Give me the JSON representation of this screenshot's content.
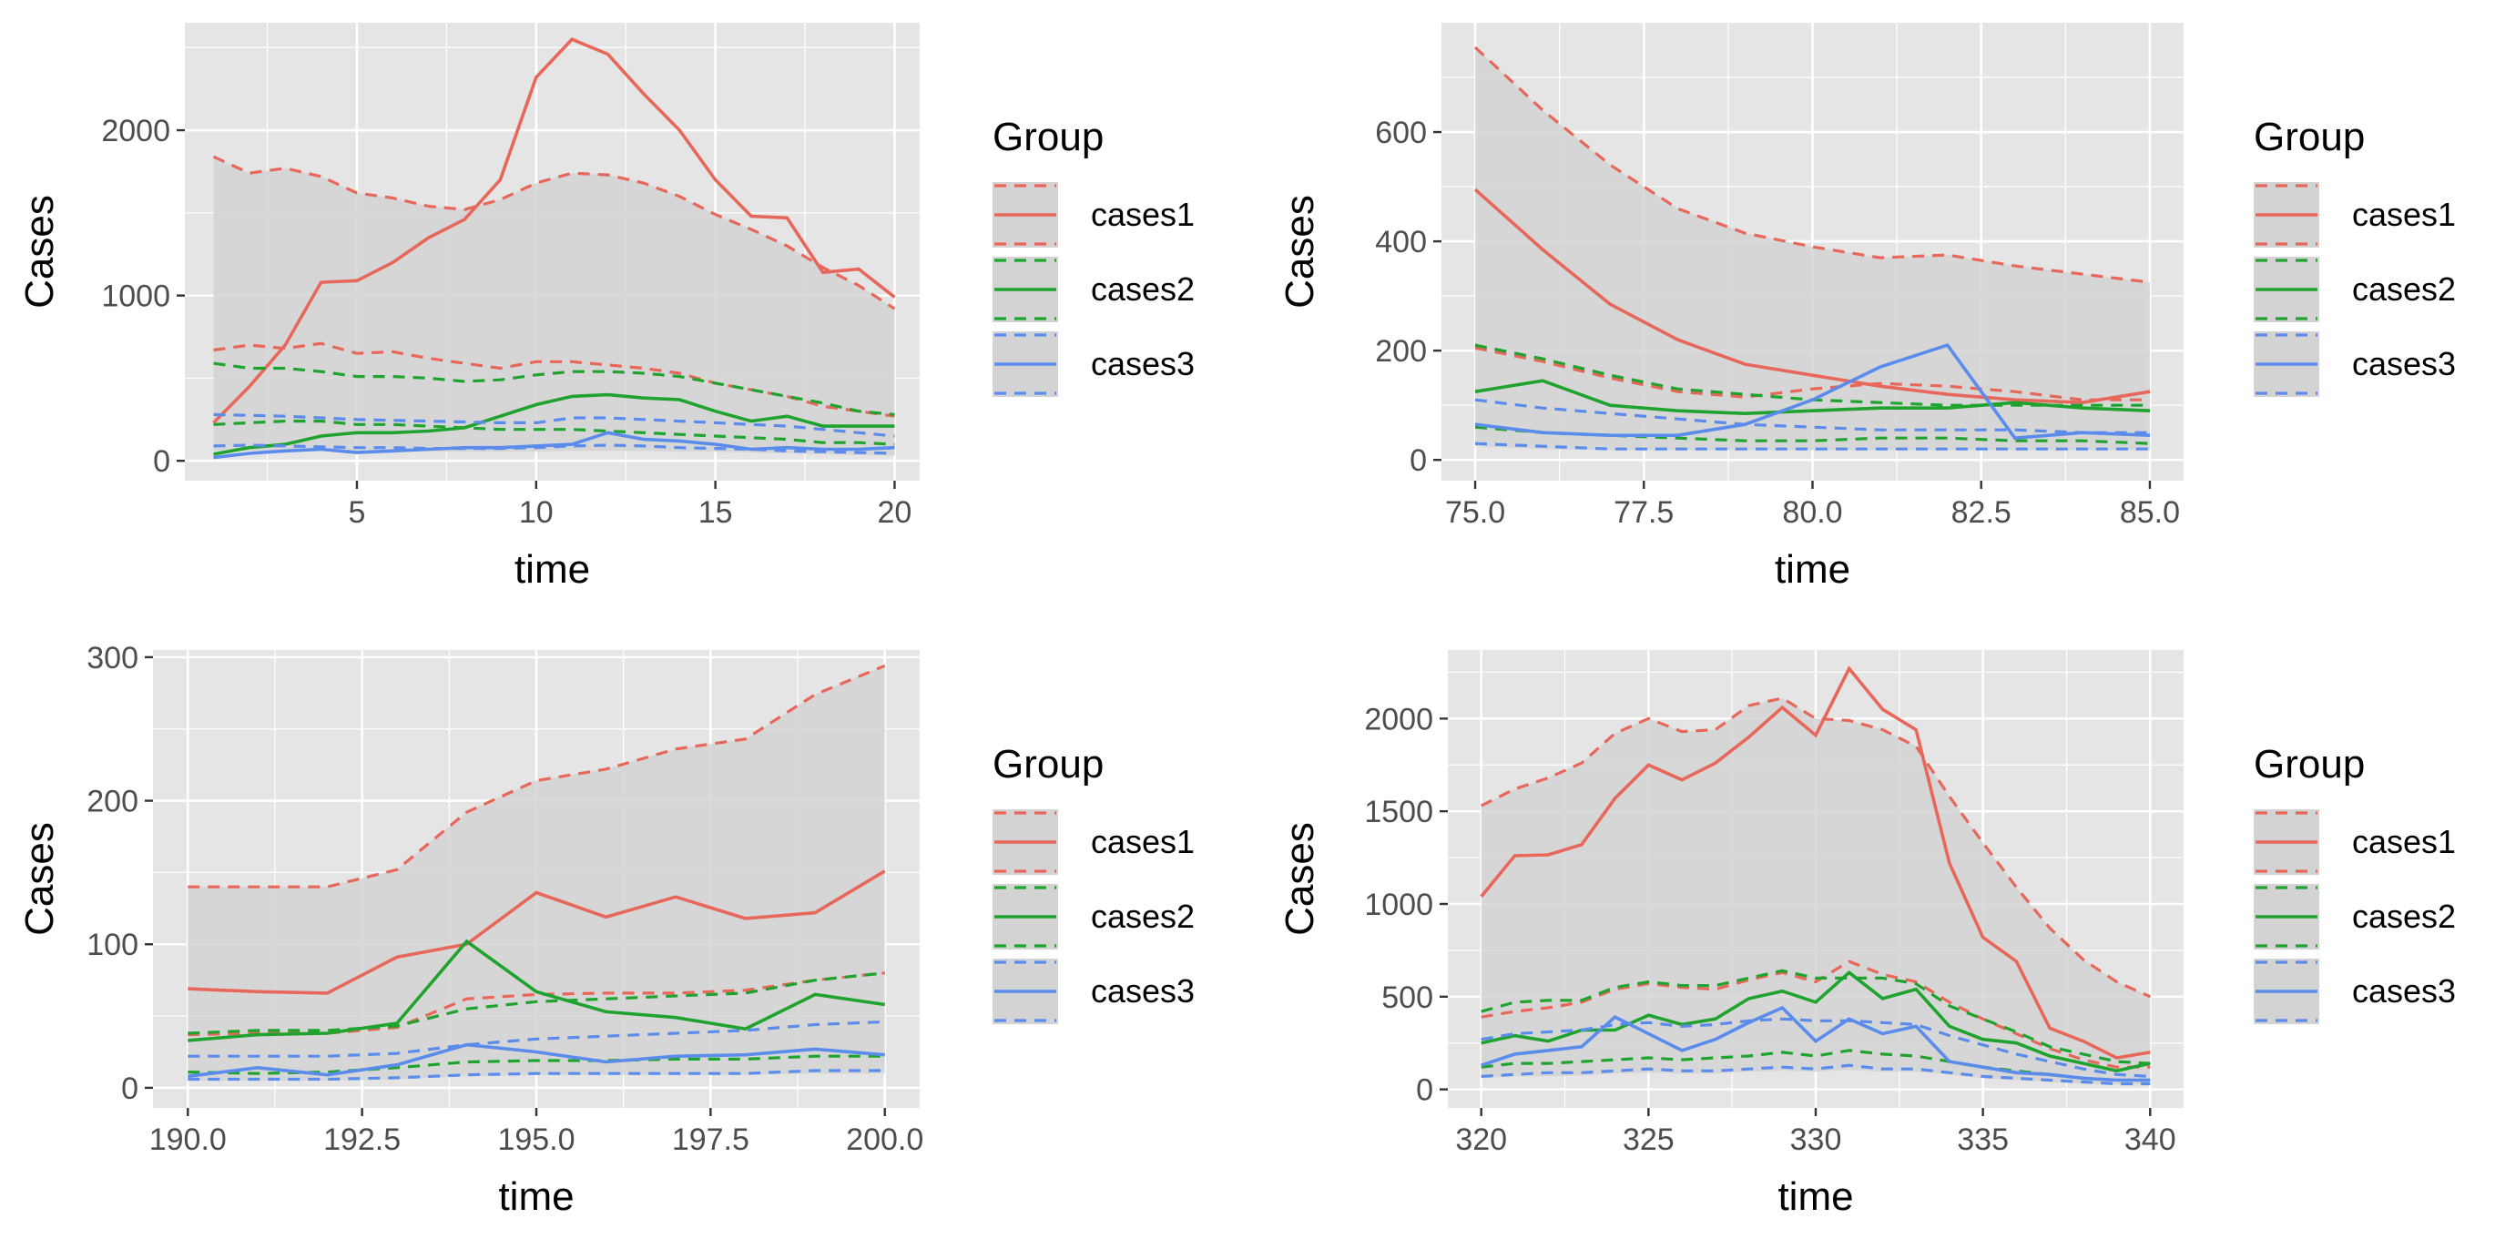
{
  "colors": {
    "cases1": "#E8675B",
    "cases2": "#1FA32E",
    "cases3": "#5B8CEB",
    "panel_background": "#E5E5E5",
    "grid": "#FFFFFF",
    "ribbon": "#D3D3D3"
  },
  "chart_data": [
    {
      "type": "line",
      "xlabel": "time",
      "ylabel": "Cases",
      "xlim": [
        0.2,
        20.7
      ],
      "ylim": [
        -120,
        2650
      ],
      "xticks": [
        5,
        10,
        15,
        20
      ],
      "xtick_labels": [
        "5",
        "10",
        "15",
        "20"
      ],
      "yticks": [
        0,
        1000,
        2000
      ],
      "ytick_labels": [
        "0",
        "1000",
        "2000"
      ],
      "grid": true,
      "legend": {
        "title": "Group",
        "position": "right",
        "items": [
          "cases1",
          "cases2",
          "cases3"
        ]
      },
      "x": [
        1,
        2,
        3,
        4,
        5,
        6,
        7,
        8,
        9,
        10,
        11,
        12,
        13,
        14,
        15,
        16,
        17,
        18,
        19,
        20
      ],
      "series": [
        {
          "name": "cases1",
          "values": [
            230,
            450,
            700,
            1080,
            1090,
            1200,
            1350,
            1460,
            1700,
            2320,
            2550,
            2460,
            2220,
            2000,
            1700,
            1480,
            1470,
            1140,
            1160,
            990
          ],
          "upper": [
            1840,
            1740,
            1770,
            1720,
            1620,
            1590,
            1540,
            1520,
            1580,
            1680,
            1740,
            1730,
            1680,
            1600,
            1490,
            1400,
            1300,
            1170,
            1060,
            920
          ],
          "lower": [
            670,
            700,
            680,
            710,
            650,
            660,
            620,
            590,
            560,
            600,
            600,
            580,
            560,
            530,
            470,
            430,
            390,
            330,
            300,
            270
          ]
        },
        {
          "name": "cases2",
          "values": [
            40,
            80,
            100,
            150,
            170,
            170,
            180,
            200,
            270,
            340,
            390,
            400,
            380,
            370,
            300,
            240,
            270,
            210,
            210,
            210
          ],
          "upper": [
            590,
            560,
            560,
            540,
            510,
            510,
            500,
            480,
            490,
            520,
            540,
            540,
            530,
            510,
            470,
            430,
            390,
            350,
            300,
            280
          ],
          "lower": [
            220,
            230,
            240,
            240,
            220,
            220,
            210,
            200,
            190,
            190,
            190,
            180,
            170,
            160,
            150,
            140,
            130,
            110,
            110,
            100
          ]
        },
        {
          "name": "cases3",
          "values": [
            20,
            45,
            60,
            70,
            50,
            60,
            70,
            80,
            80,
            90,
            100,
            170,
            130,
            120,
            100,
            70,
            80,
            70,
            70,
            80
          ],
          "upper": [
            280,
            275,
            270,
            260,
            250,
            245,
            240,
            235,
            230,
            230,
            260,
            260,
            250,
            240,
            230,
            220,
            210,
            190,
            170,
            150
          ],
          "lower": [
            90,
            95,
            90,
            85,
            80,
            80,
            75,
            75,
            75,
            80,
            90,
            95,
            90,
            80,
            75,
            70,
            60,
            55,
            50,
            45
          ]
        }
      ],
      "ribbon": {
        "upper": [
          1840,
          1740,
          1770,
          1720,
          1620,
          1590,
          1540,
          1520,
          1580,
          1680,
          1740,
          1730,
          1680,
          1600,
          1490,
          1400,
          1300,
          1170,
          1060,
          920
        ],
        "lower": [
          60,
          60,
          60,
          60,
          55,
          55,
          55,
          55,
          55,
          55,
          60,
          60,
          60,
          55,
          55,
          50,
          45,
          40,
          35,
          30
        ]
      }
    },
    {
      "type": "line",
      "xlabel": "time",
      "ylabel": "Cases",
      "xlim": [
        74.5,
        85.5
      ],
      "ylim": [
        -38,
        800
      ],
      "xticks": [
        75,
        77.5,
        80,
        82.5,
        85
      ],
      "xtick_labels": [
        "75.0",
        "77.5",
        "80.0",
        "82.5",
        "85.0"
      ],
      "yticks": [
        0,
        200,
        400,
        600
      ],
      "ytick_labels": [
        "0",
        "200",
        "400",
        "600"
      ],
      "grid": true,
      "legend": {
        "title": "Group",
        "position": "right",
        "items": [
          "cases1",
          "cases2",
          "cases3"
        ]
      },
      "x": [
        75,
        76,
        77,
        78,
        79,
        80,
        81,
        82,
        83,
        84,
        85
      ],
      "series": [
        {
          "name": "cases1",
          "values": [
            495,
            385,
            285,
            220,
            175,
            155,
            135,
            120,
            110,
            105,
            125
          ],
          "upper": [
            755,
            640,
            540,
            460,
            415,
            390,
            370,
            375,
            355,
            340,
            325
          ],
          "lower": [
            205,
            180,
            150,
            125,
            115,
            130,
            140,
            135,
            125,
            110,
            110
          ]
        },
        {
          "name": "cases2",
          "values": [
            125,
            145,
            100,
            90,
            85,
            90,
            95,
            95,
            105,
            95,
            90
          ],
          "upper": [
            210,
            185,
            155,
            130,
            120,
            110,
            105,
            100,
            100,
            100,
            100
          ],
          "lower": [
            60,
            50,
            45,
            40,
            35,
            35,
            40,
            40,
            35,
            35,
            30
          ]
        },
        {
          "name": "cases3",
          "values": [
            65,
            50,
            45,
            45,
            65,
            110,
            170,
            210,
            40,
            50,
            45
          ],
          "upper": [
            110,
            95,
            85,
            75,
            65,
            60,
            55,
            55,
            55,
            50,
            50
          ],
          "lower": [
            30,
            25,
            20,
            20,
            20,
            20,
            20,
            20,
            20,
            20,
            20
          ]
        }
      ],
      "ribbon": {
        "upper": [
          755,
          640,
          540,
          460,
          415,
          390,
          370,
          375,
          355,
          340,
          325
        ],
        "lower": [
          25,
          20,
          18,
          18,
          18,
          18,
          18,
          18,
          18,
          18,
          18
        ]
      }
    },
    {
      "type": "line",
      "xlabel": "time",
      "ylabel": "Cases",
      "xlim": [
        189.5,
        200.5
      ],
      "ylim": [
        -14,
        305
      ],
      "xticks": [
        190,
        192.5,
        195,
        197.5,
        200
      ],
      "xtick_labels": [
        "190.0",
        "192.5",
        "195.0",
        "197.5",
        "200.0"
      ],
      "yticks": [
        0,
        100,
        200,
        300
      ],
      "ytick_labels": [
        "0",
        "100",
        "200",
        "300"
      ],
      "grid": true,
      "legend": {
        "title": "Group",
        "position": "right",
        "items": [
          "cases1",
          "cases2",
          "cases3"
        ]
      },
      "x": [
        190,
        191,
        192,
        193,
        194,
        195,
        196,
        197,
        198,
        199,
        200
      ],
      "series": [
        {
          "name": "cases1",
          "values": [
            69,
            67,
            66,
            91,
            100,
            136,
            119,
            133,
            118,
            122,
            151
          ],
          "upper": [
            140,
            140,
            140,
            152,
            192,
            214,
            222,
            236,
            243,
            274,
            294
          ],
          "lower": [
            37,
            38,
            38,
            42,
            62,
            65,
            66,
            66,
            68,
            75,
            80
          ]
        },
        {
          "name": "cases2",
          "values": [
            33,
            37,
            38,
            45,
            102,
            67,
            53,
            49,
            41,
            65,
            58
          ],
          "upper": [
            38,
            40,
            40,
            43,
            55,
            60,
            62,
            64,
            66,
            75,
            80
          ],
          "lower": [
            11,
            10,
            11,
            14,
            18,
            19,
            19,
            20,
            20,
            22,
            22
          ]
        },
        {
          "name": "cases3",
          "values": [
            8,
            14,
            9,
            16,
            30,
            25,
            18,
            22,
            23,
            27,
            23
          ],
          "upper": [
            22,
            22,
            22,
            24,
            30,
            34,
            36,
            38,
            40,
            44,
            46
          ],
          "lower": [
            6,
            6,
            6,
            7,
            9,
            10,
            10,
            10,
            10,
            12,
            12
          ]
        }
      ],
      "ribbon": {
        "upper": [
          140,
          140,
          140,
          152,
          192,
          214,
          222,
          236,
          243,
          274,
          294
        ],
        "lower": [
          5,
          5,
          5,
          6,
          8,
          9,
          9,
          9,
          9,
          10,
          10
        ]
      }
    },
    {
      "type": "line",
      "xlabel": "time",
      "ylabel": "Cases",
      "xlim": [
        319,
        341
      ],
      "ylim": [
        -100,
        2370
      ],
      "xticks": [
        320,
        325,
        330,
        335,
        340
      ],
      "xtick_labels": [
        "320",
        "325",
        "330",
        "335",
        "340"
      ],
      "yticks": [
        0,
        500,
        1000,
        1500,
        2000
      ],
      "ytick_labels": [
        "0",
        "500",
        "1000",
        "1500",
        "2000"
      ],
      "grid": true,
      "legend": {
        "title": "Group",
        "position": "right",
        "items": [
          "cases1",
          "cases2",
          "cases3"
        ]
      },
      "x": [
        320,
        321,
        322,
        323,
        324,
        325,
        326,
        327,
        328,
        329,
        330,
        331,
        332,
        333,
        334,
        335,
        336,
        337,
        338,
        339,
        340
      ],
      "series": [
        {
          "name": "cases1",
          "values": [
            1040,
            1260,
            1265,
            1320,
            1570,
            1750,
            1670,
            1760,
            1900,
            2060,
            1910,
            2270,
            2050,
            1940,
            1220,
            820,
            690,
            330,
            260,
            170,
            200
          ],
          "upper": [
            1530,
            1620,
            1680,
            1760,
            1920,
            2000,
            1930,
            1940,
            2070,
            2110,
            2000,
            1990,
            1940,
            1850,
            1580,
            1330,
            1090,
            870,
            700,
            580,
            500
          ],
          "lower": [
            390,
            420,
            440,
            470,
            540,
            570,
            550,
            540,
            590,
            630,
            580,
            690,
            620,
            580,
            470,
            380,
            300,
            220,
            160,
            120,
            120
          ]
        },
        {
          "name": "cases2",
          "values": [
            250,
            290,
            260,
            320,
            320,
            400,
            350,
            380,
            490,
            530,
            470,
            630,
            490,
            540,
            340,
            270,
            250,
            180,
            140,
            100,
            140
          ],
          "upper": [
            420,
            470,
            480,
            480,
            550,
            580,
            560,
            560,
            600,
            640,
            600,
            600,
            600,
            570,
            450,
            380,
            310,
            230,
            190,
            150,
            140
          ],
          "lower": [
            120,
            140,
            140,
            150,
            160,
            170,
            160,
            170,
            180,
            200,
            180,
            210,
            190,
            180,
            150,
            120,
            100,
            80,
            60,
            50,
            50
          ]
        },
        {
          "name": "cases3",
          "values": [
            130,
            190,
            210,
            230,
            390,
            300,
            210,
            270,
            360,
            440,
            260,
            380,
            300,
            340,
            150,
            120,
            90,
            80,
            60,
            50,
            50
          ],
          "upper": [
            270,
            300,
            310,
            320,
            350,
            360,
            340,
            350,
            370,
            380,
            370,
            370,
            360,
            350,
            290,
            240,
            190,
            150,
            110,
            80,
            70
          ],
          "lower": [
            70,
            80,
            90,
            90,
            100,
            110,
            100,
            100,
            110,
            120,
            110,
            130,
            110,
            110,
            90,
            70,
            60,
            50,
            40,
            30,
            30
          ]
        }
      ],
      "ribbon": {
        "upper": [
          1530,
          1620,
          1680,
          1760,
          1920,
          2000,
          1930,
          1940,
          2070,
          2110,
          2000,
          1990,
          1940,
          1850,
          1580,
          1330,
          1090,
          870,
          700,
          580,
          500
        ],
        "lower": [
          60,
          70,
          70,
          75,
          85,
          90,
          85,
          85,
          95,
          100,
          95,
          105,
          95,
          95,
          80,
          60,
          50,
          40,
          30,
          25,
          25
        ]
      }
    }
  ]
}
